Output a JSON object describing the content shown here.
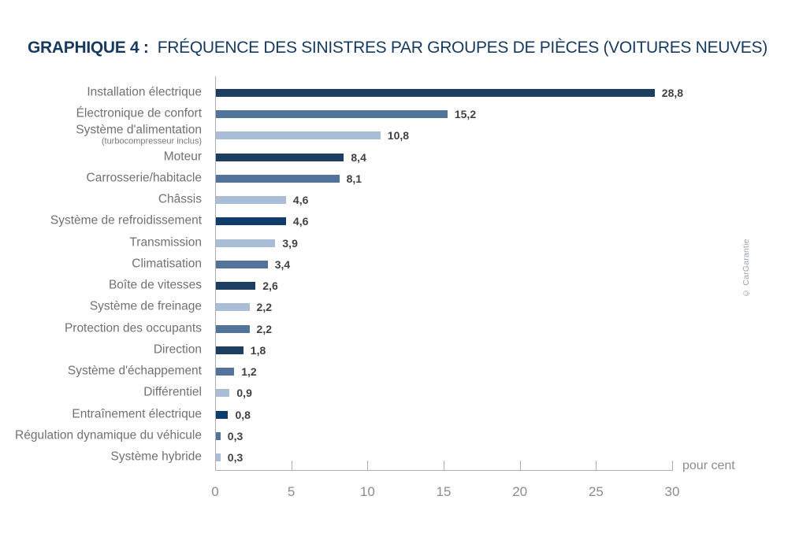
{
  "title": {
    "prefix": "GRAPHIQUE 4 :",
    "text": "FRÉQUENCE DES SINISTRES PAR GROUPES DE PIÈCES (VOITURES NEUVES)"
  },
  "credit": "© CarGarantie",
  "colors": {
    "navy": "#1D3E60",
    "dark_navy": "#0E3D6B",
    "medium_blue": "#52749B",
    "light_blue": "#A9BDD6",
    "title_navy": "#163A5F",
    "axis_gray": "#ADAFB2",
    "label_gray": "#6F7173",
    "tick_gray": "#8A8C8F",
    "value_gray": "#3F4142"
  },
  "chart_data": {
    "type": "bar",
    "orientation": "horizontal",
    "title": "GRAPHIQUE 4 : FRÉQUENCE DES SINISTRES PAR GROUPES DE PIÈCES (VOITURES NEUVES)",
    "xlabel": "pour cent",
    "ylabel": "",
    "xlim": [
      0,
      30
    ],
    "x_ticks": [
      0,
      5,
      10,
      15,
      20,
      25,
      30
    ],
    "grid": false,
    "legend": false,
    "unit_label": "pour cent",
    "rows": [
      {
        "label": "Installation électrique",
        "value": 28.8,
        "display": "28,8",
        "color": "navy"
      },
      {
        "label": "Électronique de confort",
        "value": 15.2,
        "display": "15,2",
        "color": "medium_blue"
      },
      {
        "label": "Système d'alimentation",
        "sublabel": "(turbocompresseur inclus)",
        "value": 10.8,
        "display": "10,8",
        "color": "light_blue"
      },
      {
        "label": "Moteur",
        "value": 8.4,
        "display": "8,4",
        "color": "navy"
      },
      {
        "label": "Carrosserie/habitacle",
        "value": 8.1,
        "display": "8,1",
        "color": "medium_blue"
      },
      {
        "label": "Châssis",
        "value": 4.6,
        "display": "4,6",
        "color": "light_blue"
      },
      {
        "label": "Système de refroidissement",
        "value": 4.6,
        "display": "4,6",
        "color": "dark_navy"
      },
      {
        "label": "Transmission",
        "value": 3.9,
        "display": "3,9",
        "color": "light_blue"
      },
      {
        "label": "Climatisation",
        "value": 3.4,
        "display": "3,4",
        "color": "medium_blue"
      },
      {
        "label": "Boîte de vitesses",
        "value": 2.6,
        "display": "2,6",
        "color": "navy"
      },
      {
        "label": "Système de freinage",
        "value": 2.2,
        "display": "2,2",
        "color": "light_blue"
      },
      {
        "label": "Protection des occupants",
        "value": 2.2,
        "display": "2,2",
        "color": "medium_blue"
      },
      {
        "label": "Direction",
        "value": 1.8,
        "display": "1,8",
        "color": "navy"
      },
      {
        "label": "Système d'échappement",
        "value": 1.2,
        "display": "1,2",
        "color": "medium_blue"
      },
      {
        "label": "Différentiel",
        "value": 0.9,
        "display": "0,9",
        "color": "light_blue"
      },
      {
        "label": "Entraînement électrique",
        "value": 0.8,
        "display": "0,8",
        "color": "dark_navy"
      },
      {
        "label": "Régulation dynamique du véhicule",
        "value": 0.3,
        "display": "0,3",
        "color": "medium_blue"
      },
      {
        "label": "Système hybride",
        "value": 0.3,
        "display": "0,3",
        "color": "light_blue"
      }
    ]
  }
}
